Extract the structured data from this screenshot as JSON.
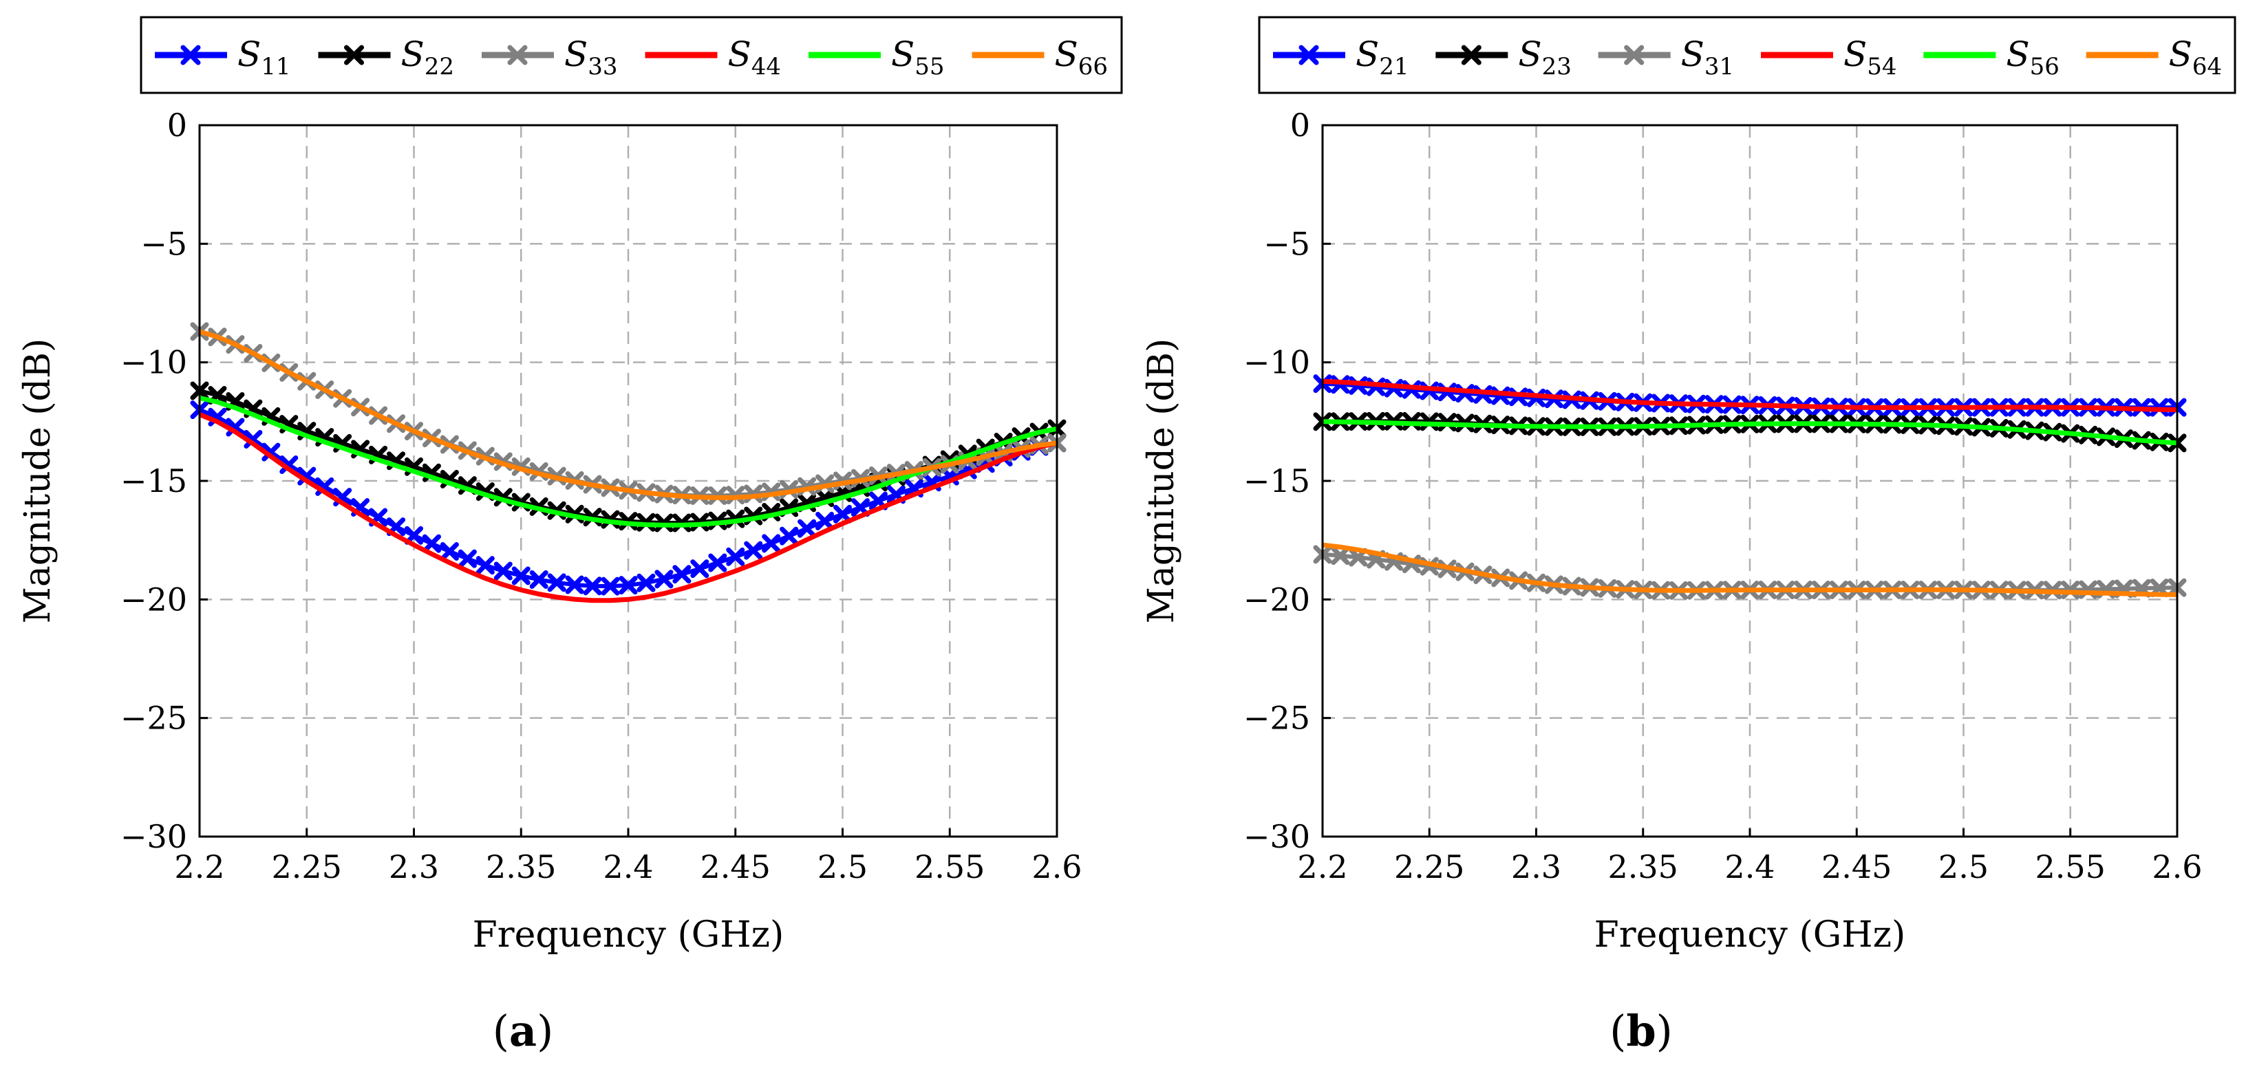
{
  "chart_data": [
    {
      "type": "line",
      "panel_label": "a",
      "xlabel": "Frequency (GHz)",
      "ylabel": "Magnitude (dB)",
      "xlim": [
        2.2,
        2.6
      ],
      "ylim": [
        -30,
        0
      ],
      "xticks": [
        "2.2",
        "2.25",
        "2.3",
        "2.35",
        "2.4",
        "2.45",
        "2.5",
        "2.55",
        "2.6"
      ],
      "yticks": [
        "0",
        "−5",
        "−10",
        "−15",
        "−20",
        "−25",
        "−30"
      ],
      "grid": true,
      "legend_position": "top",
      "x": [
        2.2,
        2.25,
        2.3,
        2.35,
        2.4,
        2.45,
        2.5,
        2.55,
        2.6
      ],
      "series": [
        {
          "name": "S11",
          "label_main": "S",
          "label_sub": "11",
          "color": "#0000ff",
          "marker": true,
          "values": [
            -12.0,
            -14.8,
            -17.3,
            -19.0,
            -19.4,
            -18.2,
            -16.4,
            -14.8,
            -13.4
          ]
        },
        {
          "name": "S22",
          "label_main": "S",
          "label_sub": "22",
          "color": "#000000",
          "marker": true,
          "values": [
            -11.2,
            -12.9,
            -14.4,
            -15.9,
            -16.7,
            -16.6,
            -15.5,
            -14.1,
            -12.8
          ]
        },
        {
          "name": "S33",
          "label_main": "S",
          "label_sub": "33",
          "color": "#808080",
          "marker": true,
          "values": [
            -8.7,
            -10.8,
            -12.9,
            -14.4,
            -15.4,
            -15.6,
            -15.0,
            -14.3,
            -13.4
          ]
        },
        {
          "name": "S44",
          "label_main": "S",
          "label_sub": "44",
          "color": "#ff0000",
          "marker": false,
          "values": [
            -12.2,
            -15.0,
            -17.7,
            -19.6,
            -20.0,
            -18.8,
            -16.8,
            -15.0,
            -13.4
          ]
        },
        {
          "name": "S55",
          "label_main": "S",
          "label_sub": "55",
          "color": "#00ff00",
          "marker": false,
          "values": [
            -11.5,
            -13.1,
            -14.6,
            -16.0,
            -16.8,
            -16.7,
            -15.7,
            -14.2,
            -12.8
          ]
        },
        {
          "name": "S66",
          "label_main": "S",
          "label_sub": "66",
          "color": "#ff8000",
          "marker": false,
          "values": [
            -8.7,
            -10.8,
            -12.9,
            -14.5,
            -15.4,
            -15.7,
            -15.1,
            -14.3,
            -13.4
          ]
        }
      ]
    },
    {
      "type": "line",
      "panel_label": "b",
      "xlabel": "Frequency (GHz)",
      "ylabel": "Magnitude (dB)",
      "xlim": [
        2.2,
        2.6
      ],
      "ylim": [
        -30,
        0
      ],
      "xticks": [
        "2.2",
        "2.25",
        "2.3",
        "2.35",
        "2.4",
        "2.45",
        "2.5",
        "2.55",
        "2.6"
      ],
      "yticks": [
        "0",
        "−5",
        "−10",
        "−15",
        "−20",
        "−25",
        "−30"
      ],
      "grid": true,
      "legend_position": "top",
      "x": [
        2.2,
        2.25,
        2.3,
        2.35,
        2.4,
        2.45,
        2.5,
        2.55,
        2.6
      ],
      "series": [
        {
          "name": "S21",
          "label_main": "S",
          "label_sub": "21",
          "color": "#0000ff",
          "marker": true,
          "values": [
            -10.9,
            -11.2,
            -11.5,
            -11.7,
            -11.8,
            -11.9,
            -11.9,
            -11.9,
            -11.9
          ]
        },
        {
          "name": "S23",
          "label_main": "S",
          "label_sub": "23",
          "color": "#000000",
          "marker": true,
          "values": [
            -12.5,
            -12.5,
            -12.7,
            -12.7,
            -12.6,
            -12.6,
            -12.7,
            -13.0,
            -13.4
          ]
        },
        {
          "name": "S31",
          "label_main": "S",
          "label_sub": "31",
          "color": "#808080",
          "marker": true,
          "values": [
            -18.1,
            -18.6,
            -19.3,
            -19.6,
            -19.6,
            -19.6,
            -19.6,
            -19.6,
            -19.5
          ]
        },
        {
          "name": "S54",
          "label_main": "S",
          "label_sub": "54",
          "color": "#ff0000",
          "marker": false,
          "values": [
            -10.8,
            -11.1,
            -11.4,
            -11.7,
            -11.8,
            -11.9,
            -11.9,
            -11.9,
            -12.0
          ]
        },
        {
          "name": "S56",
          "label_main": "S",
          "label_sub": "56",
          "color": "#00ff00",
          "marker": false,
          "values": [
            -12.5,
            -12.6,
            -12.7,
            -12.7,
            -12.6,
            -12.6,
            -12.7,
            -13.0,
            -13.4
          ]
        },
        {
          "name": "S64",
          "label_main": "S",
          "label_sub": "64",
          "color": "#ff8000",
          "marker": false,
          "values": [
            -17.7,
            -18.5,
            -19.3,
            -19.6,
            -19.6,
            -19.6,
            -19.6,
            -19.7,
            -19.8
          ]
        }
      ]
    }
  ]
}
